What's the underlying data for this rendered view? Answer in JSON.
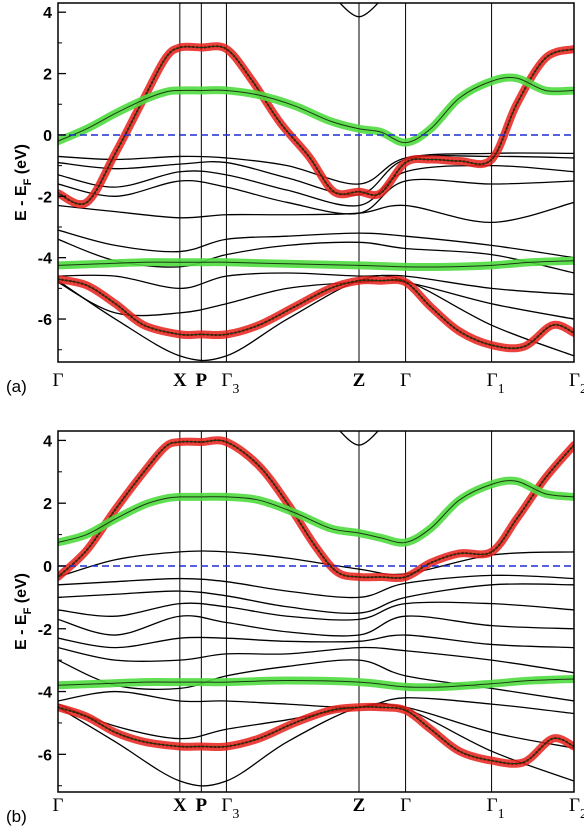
{
  "chart_data": [
    {
      "panel": "(a)",
      "type": "line",
      "ylabel": "E - EF (eV)",
      "ylim": [
        -7.4,
        4.3
      ],
      "yticks": [
        4,
        2,
        0,
        -2,
        -4,
        -6
      ],
      "xlim": [
        0,
        7.2
      ],
      "kpoints": [
        {
          "label": "Γ",
          "x": 0.0,
          "sub": ""
        },
        {
          "label": "X",
          "x": 1.7,
          "sub": ""
        },
        {
          "label": "P",
          "x": 2.0,
          "sub": ""
        },
        {
          "label": "Γ",
          "x": 2.35,
          "sub": "3"
        },
        {
          "label": "Z",
          "x": 4.2,
          "sub": ""
        },
        {
          "label": "Γ",
          "x": 4.85,
          "sub": ""
        },
        {
          "label": "Γ",
          "x": 6.05,
          "sub": "1"
        },
        {
          "label": "Γ",
          "x": 7.2,
          "sub": "2"
        }
      ],
      "fermi_level": 0,
      "highlighted_bands": [
        {
          "color": "red",
          "x": [
            0,
            0.4,
            0.8,
            1.2,
            1.5,
            1.7,
            2.0,
            2.35,
            2.7,
            3.1,
            3.5,
            3.85,
            4.2,
            4.5,
            4.85,
            5.2,
            5.6,
            6.05,
            6.4,
            6.8,
            7.2
          ],
          "y": [
            -1.9,
            -2.2,
            -0.6,
            1.2,
            2.5,
            2.85,
            2.85,
            2.8,
            1.8,
            0.4,
            -0.7,
            -1.85,
            -1.85,
            -1.9,
            -0.9,
            -0.8,
            -0.85,
            -0.8,
            1.0,
            2.5,
            2.8
          ]
        },
        {
          "color": "green",
          "x": [
            0,
            0.4,
            0.8,
            1.2,
            1.5,
            1.7,
            2.0,
            2.35,
            2.8,
            3.3,
            3.8,
            4.2,
            4.5,
            4.85,
            5.2,
            5.6,
            6.05,
            6.4,
            6.8,
            7.2
          ],
          "y": [
            -0.2,
            0.2,
            0.7,
            1.15,
            1.4,
            1.45,
            1.45,
            1.45,
            1.3,
            0.95,
            0.45,
            0.2,
            0.1,
            -0.25,
            0.2,
            1.2,
            1.75,
            1.85,
            1.45,
            1.45
          ]
        },
        {
          "color": "green",
          "x": [
            0,
            0.6,
            1.2,
            1.7,
            2.0,
            2.35,
            3.2,
            4.2,
            4.85,
            5.4,
            6.05,
            6.6,
            7.2
          ],
          "y": [
            -4.25,
            -4.2,
            -4.15,
            -4.15,
            -4.15,
            -4.15,
            -4.2,
            -4.25,
            -4.3,
            -4.3,
            -4.25,
            -4.15,
            -4.1
          ]
        },
        {
          "color": "red",
          "x": [
            0,
            0.4,
            0.8,
            1.2,
            1.7,
            2.0,
            2.35,
            2.8,
            3.3,
            3.8,
            4.2,
            4.5,
            4.85,
            5.2,
            5.6,
            6.05,
            6.5,
            6.9,
            7.2
          ],
          "y": [
            -4.7,
            -4.9,
            -5.5,
            -6.2,
            -6.5,
            -6.5,
            -6.5,
            -6.2,
            -5.6,
            -5.0,
            -4.75,
            -4.75,
            -4.8,
            -5.6,
            -6.4,
            -6.85,
            -6.9,
            -6.2,
            -6.45
          ]
        }
      ],
      "black_bands": [
        {
          "x": [
            0,
            0.8,
            1.7,
            2.35,
            3.2,
            4.2,
            4.85,
            6.05,
            7.2
          ],
          "y": [
            -0.7,
            -0.8,
            -0.7,
            -0.75,
            -1.0,
            -1.6,
            -0.75,
            -0.6,
            -0.6
          ]
        },
        {
          "x": [
            0,
            0.8,
            1.7,
            2.35,
            3.2,
            4.2,
            4.85,
            6.05,
            7.2
          ],
          "y": [
            -0.9,
            -1.1,
            -0.95,
            -0.9,
            -1.4,
            -1.95,
            -0.8,
            -0.7,
            -0.75
          ]
        },
        {
          "x": [
            0,
            0.8,
            1.7,
            2.35,
            3.2,
            4.2,
            4.85,
            6.05,
            7.2
          ],
          "y": [
            -1.3,
            -1.7,
            -1.2,
            -1.3,
            -1.8,
            -2.3,
            -1.2,
            -1.0,
            -1.2
          ]
        },
        {
          "x": [
            0,
            0.8,
            1.7,
            2.35,
            3.2,
            4.2,
            4.85,
            6.05,
            7.2
          ],
          "y": [
            -1.6,
            -2.0,
            -1.5,
            -1.7,
            -2.2,
            -2.55,
            -1.5,
            -1.6,
            -1.5
          ]
        },
        {
          "x": [
            0,
            0.8,
            1.7,
            2.35,
            3.2,
            4.2,
            4.85,
            6.05,
            7.2
          ],
          "y": [
            -2.3,
            -2.5,
            -2.7,
            -2.6,
            -2.6,
            -2.55,
            -2.3,
            -2.85,
            -2.2
          ]
        },
        {
          "x": [
            0,
            0.8,
            1.7,
            2.35,
            3.2,
            4.2,
            4.85,
            6.05,
            7.2
          ],
          "y": [
            -3.1,
            -3.6,
            -3.8,
            -3.4,
            -3.3,
            -3.2,
            -3.3,
            -3.6,
            -4.0
          ]
        },
        {
          "x": [
            0,
            0.8,
            1.7,
            2.35,
            3.2,
            4.2,
            4.85,
            6.05,
            7.2
          ],
          "y": [
            -3.4,
            -4.1,
            -4.3,
            -3.9,
            -3.6,
            -3.5,
            -3.7,
            -3.9,
            -4.5
          ]
        },
        {
          "x": [
            0,
            0.8,
            1.7,
            2.35,
            3.2,
            4.2,
            4.85,
            6.05,
            7.2
          ],
          "y": [
            -4.6,
            -4.6,
            -5.0,
            -4.6,
            -4.5,
            -4.6,
            -4.6,
            -5.0,
            -5.2
          ]
        },
        {
          "x": [
            0,
            0.8,
            1.7,
            2.35,
            3.2,
            4.2,
            4.85,
            6.05,
            7.2
          ],
          "y": [
            -4.8,
            -5.8,
            -5.8,
            -5.5,
            -5.0,
            -4.8,
            -4.8,
            -5.5,
            -6.0
          ]
        },
        {
          "x": [
            0,
            0.8,
            1.7,
            2.35,
            3.2,
            4.2,
            4.85,
            6.05,
            7.2
          ],
          "y": [
            -4.75,
            -6.0,
            -7.2,
            -7.2,
            -6.0,
            -4.75,
            -4.75,
            -6.2,
            -7.2
          ]
        },
        {
          "x": [
            3.85,
            4.2,
            4.55
          ],
          "y": [
            4.5,
            3.85,
            4.5
          ]
        }
      ]
    },
    {
      "panel": "(b)",
      "type": "line",
      "ylabel": "E - EF (eV)",
      "ylim": [
        -7.2,
        4.3
      ],
      "yticks": [
        4,
        2,
        0,
        -2,
        -4,
        -6
      ],
      "xlim": [
        0,
        7.2
      ],
      "kpoints": [
        {
          "label": "Γ",
          "x": 0.0,
          "sub": ""
        },
        {
          "label": "X",
          "x": 1.7,
          "sub": ""
        },
        {
          "label": "P",
          "x": 2.0,
          "sub": ""
        },
        {
          "label": "Γ",
          "x": 2.35,
          "sub": "3"
        },
        {
          "label": "Z",
          "x": 4.2,
          "sub": ""
        },
        {
          "label": "Γ",
          "x": 4.85,
          "sub": ""
        },
        {
          "label": "Γ",
          "x": 6.05,
          "sub": "1"
        },
        {
          "label": "Γ",
          "x": 7.2,
          "sub": "2"
        }
      ],
      "fermi_level": 0,
      "highlighted_bands": [
        {
          "color": "red",
          "x": [
            0,
            0.4,
            0.8,
            1.2,
            1.5,
            1.7,
            2.0,
            2.35,
            2.8,
            3.2,
            3.6,
            3.9,
            4.2,
            4.5,
            4.85,
            5.2,
            5.6,
            6.05,
            6.4,
            6.8,
            7.2
          ],
          "y": [
            -0.35,
            0.5,
            1.8,
            3.0,
            3.8,
            3.95,
            3.95,
            3.95,
            3.2,
            2.0,
            0.6,
            -0.2,
            -0.35,
            -0.35,
            -0.35,
            0.1,
            0.4,
            0.45,
            1.5,
            2.8,
            3.85
          ]
        },
        {
          "color": "green",
          "x": [
            0,
            0.4,
            0.8,
            1.2,
            1.5,
            1.7,
            2.0,
            2.35,
            2.8,
            3.3,
            3.8,
            4.2,
            4.5,
            4.85,
            5.2,
            5.6,
            6.05,
            6.4,
            6.8,
            7.2
          ],
          "y": [
            0.75,
            1.0,
            1.5,
            1.95,
            2.15,
            2.2,
            2.2,
            2.2,
            2.1,
            1.7,
            1.2,
            1.05,
            0.9,
            0.75,
            1.2,
            2.1,
            2.6,
            2.7,
            2.3,
            2.2
          ]
        },
        {
          "color": "green",
          "x": [
            0,
            0.6,
            1.2,
            1.7,
            2.0,
            2.35,
            3.2,
            4.2,
            4.85,
            5.4,
            6.05,
            6.6,
            7.2
          ],
          "y": [
            -3.8,
            -3.75,
            -3.7,
            -3.7,
            -3.7,
            -3.7,
            -3.65,
            -3.7,
            -3.85,
            -3.85,
            -3.75,
            -3.65,
            -3.6
          ]
        },
        {
          "color": "red",
          "x": [
            0,
            0.4,
            0.8,
            1.2,
            1.7,
            2.0,
            2.35,
            2.8,
            3.3,
            3.8,
            4.2,
            4.5,
            4.85,
            5.2,
            5.6,
            6.05,
            6.5,
            6.9,
            7.2
          ],
          "y": [
            -4.5,
            -4.8,
            -5.3,
            -5.6,
            -5.75,
            -5.75,
            -5.75,
            -5.5,
            -5.0,
            -4.6,
            -4.5,
            -4.5,
            -4.6,
            -5.2,
            -5.9,
            -6.2,
            -6.25,
            -5.5,
            -5.75
          ]
        }
      ],
      "black_bands": [
        {
          "x": [
            0,
            0.8,
            1.7,
            2.35,
            3.2,
            4.2,
            4.85,
            6.05,
            7.2
          ],
          "y": [
            -0.35,
            0.2,
            0.45,
            0.45,
            0.25,
            -0.1,
            -0.25,
            0.35,
            0.45
          ]
        },
        {
          "x": [
            0,
            0.8,
            1.7,
            2.35,
            3.2,
            4.2,
            4.85,
            6.05,
            7.2
          ],
          "y": [
            -0.6,
            -0.5,
            -0.4,
            -0.5,
            -0.8,
            -1.0,
            -0.55,
            -0.3,
            -0.4
          ]
        },
        {
          "x": [
            0,
            0.8,
            1.7,
            2.35,
            3.2,
            4.2,
            4.85,
            6.05,
            7.2
          ],
          "y": [
            -1.0,
            -0.9,
            -0.8,
            -0.95,
            -1.3,
            -1.5,
            -1.0,
            -0.6,
            -0.6
          ]
        },
        {
          "x": [
            0,
            0.8,
            1.7,
            2.35,
            3.2,
            4.2,
            4.85,
            6.05,
            7.2
          ],
          "y": [
            -1.4,
            -1.6,
            -1.2,
            -1.3,
            -1.6,
            -1.7,
            -1.2,
            -1.2,
            -1.4
          ]
        },
        {
          "x": [
            0,
            0.8,
            1.7,
            2.35,
            3.2,
            4.2,
            4.85,
            6.05,
            7.2
          ],
          "y": [
            -1.7,
            -2.2,
            -1.6,
            -1.8,
            -2.1,
            -2.2,
            -1.6,
            -1.9,
            -2.0
          ]
        },
        {
          "x": [
            0,
            0.8,
            1.7,
            2.35,
            3.2,
            4.2,
            4.85,
            6.05,
            7.2
          ],
          "y": [
            -2.3,
            -2.6,
            -2.3,
            -2.3,
            -2.4,
            -2.4,
            -2.2,
            -2.5,
            -2.6
          ]
        },
        {
          "x": [
            0,
            0.8,
            1.7,
            2.35,
            3.2,
            4.2,
            4.85,
            6.05,
            7.2
          ],
          "y": [
            -2.6,
            -3.0,
            -3.0,
            -2.8,
            -2.8,
            -2.6,
            -2.7,
            -3.0,
            -3.4
          ]
        },
        {
          "x": [
            0,
            0.8,
            1.7,
            2.35,
            3.2,
            4.2,
            4.85,
            6.05,
            7.2
          ],
          "y": [
            -3.0,
            -3.8,
            -3.9,
            -3.5,
            -3.2,
            -3.0,
            -3.5,
            -3.9,
            -4.3
          ]
        },
        {
          "x": [
            0,
            0.8,
            1.7,
            2.35,
            3.2,
            4.2,
            4.85,
            6.05,
            7.2
          ],
          "y": [
            -4.3,
            -4.0,
            -4.3,
            -4.3,
            -4.4,
            -4.5,
            -4.2,
            -4.4,
            -4.7
          ]
        },
        {
          "x": [
            0,
            0.8,
            1.7,
            2.35,
            3.2,
            4.2,
            4.85,
            6.05,
            7.2
          ],
          "y": [
            -4.4,
            -5.1,
            -5.5,
            -5.2,
            -4.9,
            -4.5,
            -4.5,
            -5.3,
            -5.8
          ]
        },
        {
          "x": [
            0,
            0.8,
            1.7,
            2.35,
            3.2,
            4.2,
            4.85,
            6.05,
            7.2
          ],
          "y": [
            -4.5,
            -5.6,
            -6.85,
            -6.85,
            -5.6,
            -4.5,
            -4.55,
            -5.9,
            -6.85
          ]
        },
        {
          "x": [
            3.85,
            4.2,
            4.55
          ],
          "y": [
            4.5,
            3.85,
            4.5
          ]
        }
      ]
    }
  ]
}
